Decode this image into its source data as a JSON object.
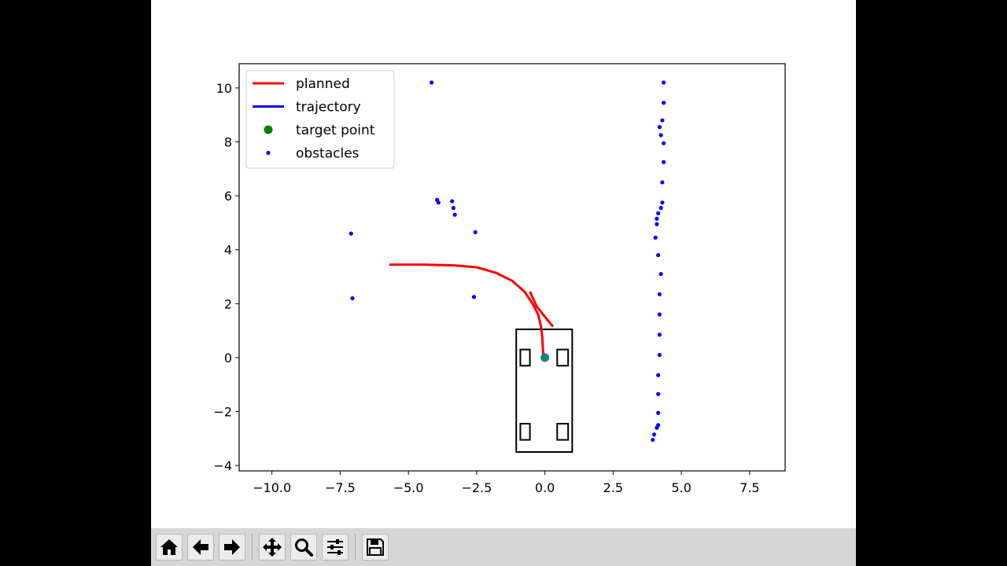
{
  "toolbar": {
    "buttons": [
      {
        "name": "home-icon"
      },
      {
        "name": "back-arrow-icon"
      },
      {
        "name": "forward-arrow-icon"
      },
      {
        "name": "pan-icon"
      },
      {
        "name": "zoom-icon"
      },
      {
        "name": "configure-subplots-icon"
      },
      {
        "name": "save-icon"
      }
    ]
  },
  "chart_data": {
    "type": "line",
    "title": "",
    "xlabel": "",
    "ylabel": "",
    "xlim": [
      -11.2,
      8.8
    ],
    "ylim": [
      -4.2,
      10.9
    ],
    "x_ticks": [
      -10.0,
      -7.5,
      -5.0,
      -2.5,
      0.0,
      2.5,
      5.0,
      7.5
    ],
    "x_tick_labels": [
      "−10.0",
      "−7.5",
      "−5.0",
      "−2.5",
      "0.0",
      "2.5",
      "5.0",
      "7.5"
    ],
    "y_ticks": [
      -4,
      -2,
      0,
      2,
      4,
      6,
      8,
      10
    ],
    "y_tick_labels": [
      "−4",
      "−2",
      "0",
      "2",
      "4",
      "6",
      "8",
      "10"
    ],
    "grid": false,
    "legend_position": "top-left",
    "legend": [
      {
        "label": "planned",
        "style": "line",
        "color": "#ff0000"
      },
      {
        "label": "trajectory",
        "style": "line",
        "color": "#0000ff"
      },
      {
        "label": "target point",
        "style": "dot",
        "color": "#008000"
      },
      {
        "label": "obstacles",
        "style": "small-dot",
        "color": "#0000ff"
      }
    ],
    "series": [
      {
        "name": "planned",
        "color": "#ff0000",
        "points": [
          [
            -5.7,
            3.45
          ],
          [
            -4.5,
            3.45
          ],
          [
            -3.3,
            3.42
          ],
          [
            -2.5,
            3.35
          ],
          [
            -1.8,
            3.15
          ],
          [
            -1.2,
            2.85
          ],
          [
            -0.75,
            2.45
          ],
          [
            -0.45,
            2.0
          ],
          [
            -0.25,
            1.6
          ],
          [
            -0.15,
            1.2
          ],
          [
            -0.1,
            0.8
          ],
          [
            -0.08,
            0.4
          ],
          [
            -0.05,
            0.0
          ]
        ]
      },
      {
        "name": "planned",
        "color": "#ff0000",
        "points": [
          [
            -0.55,
            2.45
          ],
          [
            -0.3,
            1.9
          ],
          [
            0.05,
            1.45
          ],
          [
            0.3,
            1.15
          ]
        ]
      },
      {
        "name": "target point",
        "color": "#1a7f8e",
        "points": [
          [
            0.0,
            0.0
          ]
        ]
      },
      {
        "name": "obstacles",
        "color": "#0000ff",
        "points": [
          [
            -4.15,
            10.2
          ],
          [
            -7.1,
            4.6
          ],
          [
            -7.05,
            2.2
          ],
          [
            -3.95,
            5.85
          ],
          [
            -3.9,
            5.75
          ],
          [
            -3.4,
            5.8
          ],
          [
            -3.35,
            5.55
          ],
          [
            -3.3,
            5.3
          ],
          [
            -2.55,
            4.65
          ],
          [
            -2.6,
            2.25
          ],
          [
            4.35,
            10.2
          ],
          [
            4.35,
            9.45
          ],
          [
            4.3,
            8.8
          ],
          [
            4.2,
            8.55
          ],
          [
            4.25,
            8.25
          ],
          [
            4.35,
            7.95
          ],
          [
            4.35,
            7.25
          ],
          [
            4.3,
            6.5
          ],
          [
            4.3,
            5.75
          ],
          [
            4.25,
            5.55
          ],
          [
            4.15,
            5.35
          ],
          [
            4.1,
            5.15
          ],
          [
            4.1,
            4.95
          ],
          [
            4.05,
            4.45
          ],
          [
            4.15,
            3.8
          ],
          [
            4.25,
            3.1
          ],
          [
            4.2,
            2.35
          ],
          [
            4.2,
            1.6
          ],
          [
            4.2,
            0.85
          ],
          [
            4.2,
            0.1
          ],
          [
            4.15,
            -0.65
          ],
          [
            4.15,
            -1.35
          ],
          [
            4.15,
            -2.05
          ],
          [
            4.15,
            -2.5
          ],
          [
            4.1,
            -2.6
          ],
          [
            4.0,
            -2.85
          ],
          [
            3.95,
            -3.05
          ]
        ]
      }
    ],
    "vehicle": {
      "body": {
        "x0": -1.05,
        "x1": 1.0,
        "y0": -3.5,
        "y1": 1.05
      },
      "wheels": [
        {
          "x0": -0.9,
          "x1": -0.55,
          "y0": -0.3,
          "y1": 0.3
        },
        {
          "x0": 0.45,
          "x1": 0.85,
          "y0": -0.3,
          "y1": 0.3
        },
        {
          "x0": -0.9,
          "x1": -0.55,
          "y0": -3.05,
          "y1": -2.45
        },
        {
          "x0": 0.45,
          "x1": 0.85,
          "y0": -3.05,
          "y1": -2.45
        }
      ]
    }
  }
}
